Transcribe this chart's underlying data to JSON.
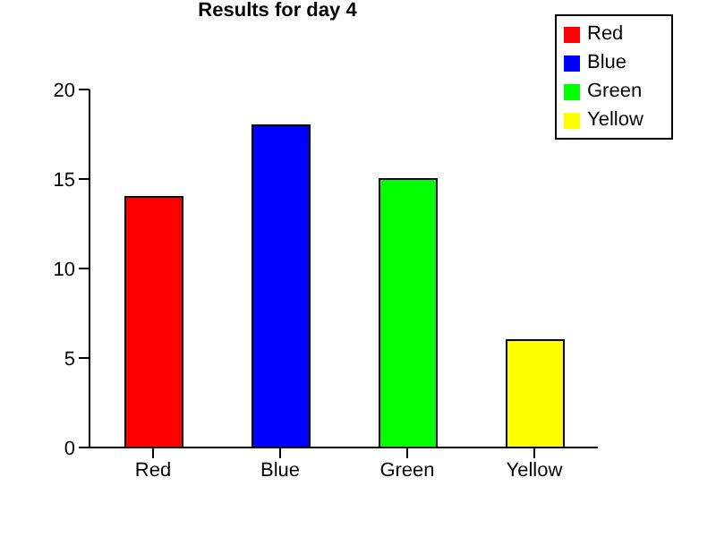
{
  "chart_data": {
    "type": "bar",
    "title": "Results for day 4",
    "stacked": true,
    "categories": [
      "Red",
      "Blue",
      "Green",
      "Yellow"
    ],
    "series": [
      {
        "name": "Red",
        "color": "#ff0000",
        "values": [
          14,
          null,
          null,
          null
        ]
      },
      {
        "name": "Blue",
        "color": "#0000ff",
        "values": [
          null,
          18,
          null,
          null
        ]
      },
      {
        "name": "Green",
        "color": "#00ff00",
        "values": [
          null,
          null,
          15,
          null
        ]
      },
      {
        "name": "Yellow",
        "color": "#ffff00",
        "values": [
          null,
          null,
          null,
          6
        ]
      }
    ],
    "ylim": [
      0,
      20
    ],
    "yticks": [
      0,
      5,
      10,
      15,
      20
    ],
    "grid": false,
    "legend": "top right"
  }
}
